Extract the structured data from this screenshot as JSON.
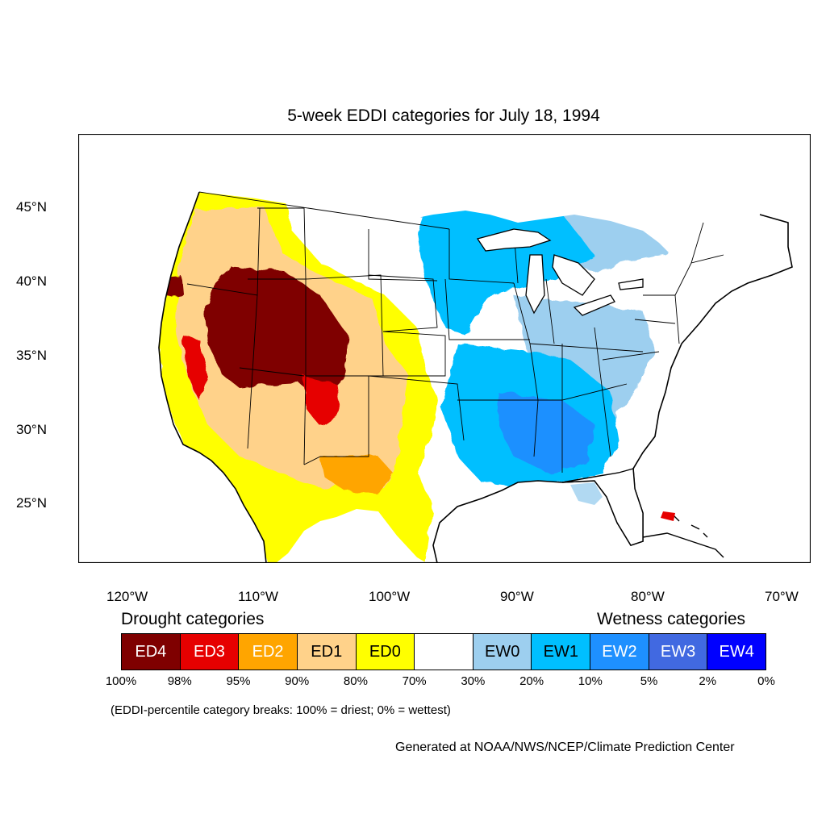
{
  "title": "5-week EDDI categories for July 18, 1994",
  "latitude_labels": [
    "45°N",
    "40°N",
    "35°N",
    "30°N",
    "25°N"
  ],
  "longitude_labels": [
    "120°W",
    "110°W",
    "100°W",
    "90°W",
    "80°W",
    "70°W"
  ],
  "legend": {
    "drought_heading": "Drought categories",
    "wetness_heading": "Wetness categories",
    "categories": [
      {
        "label": "ED4",
        "color": "#7f0000",
        "text_color": "#ffffff"
      },
      {
        "label": "ED3",
        "color": "#e60000",
        "text_color": "#ffffff"
      },
      {
        "label": "ED2",
        "color": "#ffa500",
        "text_color": "#ffffff"
      },
      {
        "label": "ED1",
        "color": "#ffd28a",
        "text_color": "#000000"
      },
      {
        "label": "ED0",
        "color": "#ffff00",
        "text_color": "#000000"
      },
      {
        "label": "",
        "color": "#ffffff",
        "text_color": "#000000"
      },
      {
        "label": "EW0",
        "color": "#9dcfef",
        "text_color": "#000000"
      },
      {
        "label": "EW1",
        "color": "#00bfff",
        "text_color": "#000000"
      },
      {
        "label": "EW2",
        "color": "#1e90ff",
        "text_color": "#ffffff"
      },
      {
        "label": "EW3",
        "color": "#4169e1",
        "text_color": "#ffffff"
      },
      {
        "label": "EW4",
        "color": "#0000ff",
        "text_color": "#ffffff"
      }
    ],
    "breaks": [
      "100%",
      "98%",
      "95%",
      "90%",
      "80%",
      "70%",
      "30%",
      "20%",
      "10%",
      "5%",
      "2%",
      "0%"
    ]
  },
  "note": "(EDDI-percentile category breaks: 100% = driest; 0% = wettest)",
  "credit": "Generated at NOAA/NWS/NCEP/Climate Prediction Center"
}
